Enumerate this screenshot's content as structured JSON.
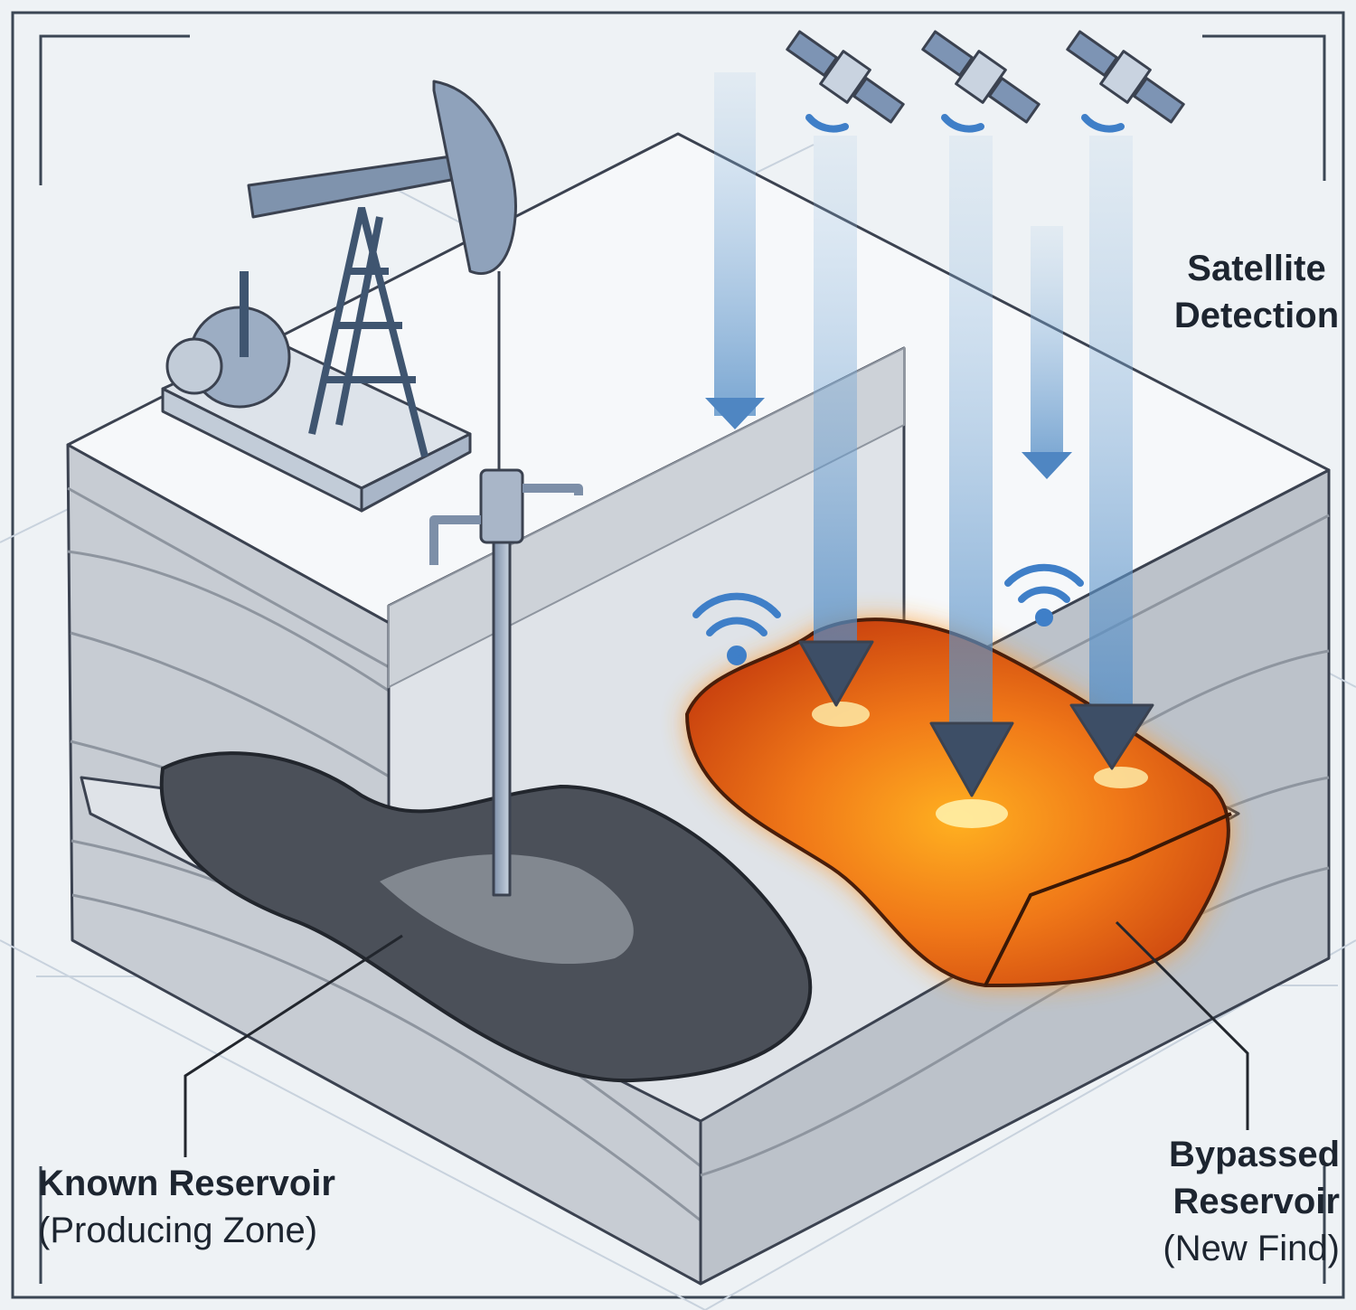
{
  "labels": {
    "satellite_detection": [
      "Satellite",
      "Detection"
    ],
    "known_reservoir": {
      "title": "Known Reservoir",
      "subtitle": "(Producing Zone)"
    },
    "bypassed_reservoir": {
      "title": [
        "Bypassed",
        "Reservoir"
      ],
      "subtitle": "(New Find)"
    }
  }
}
